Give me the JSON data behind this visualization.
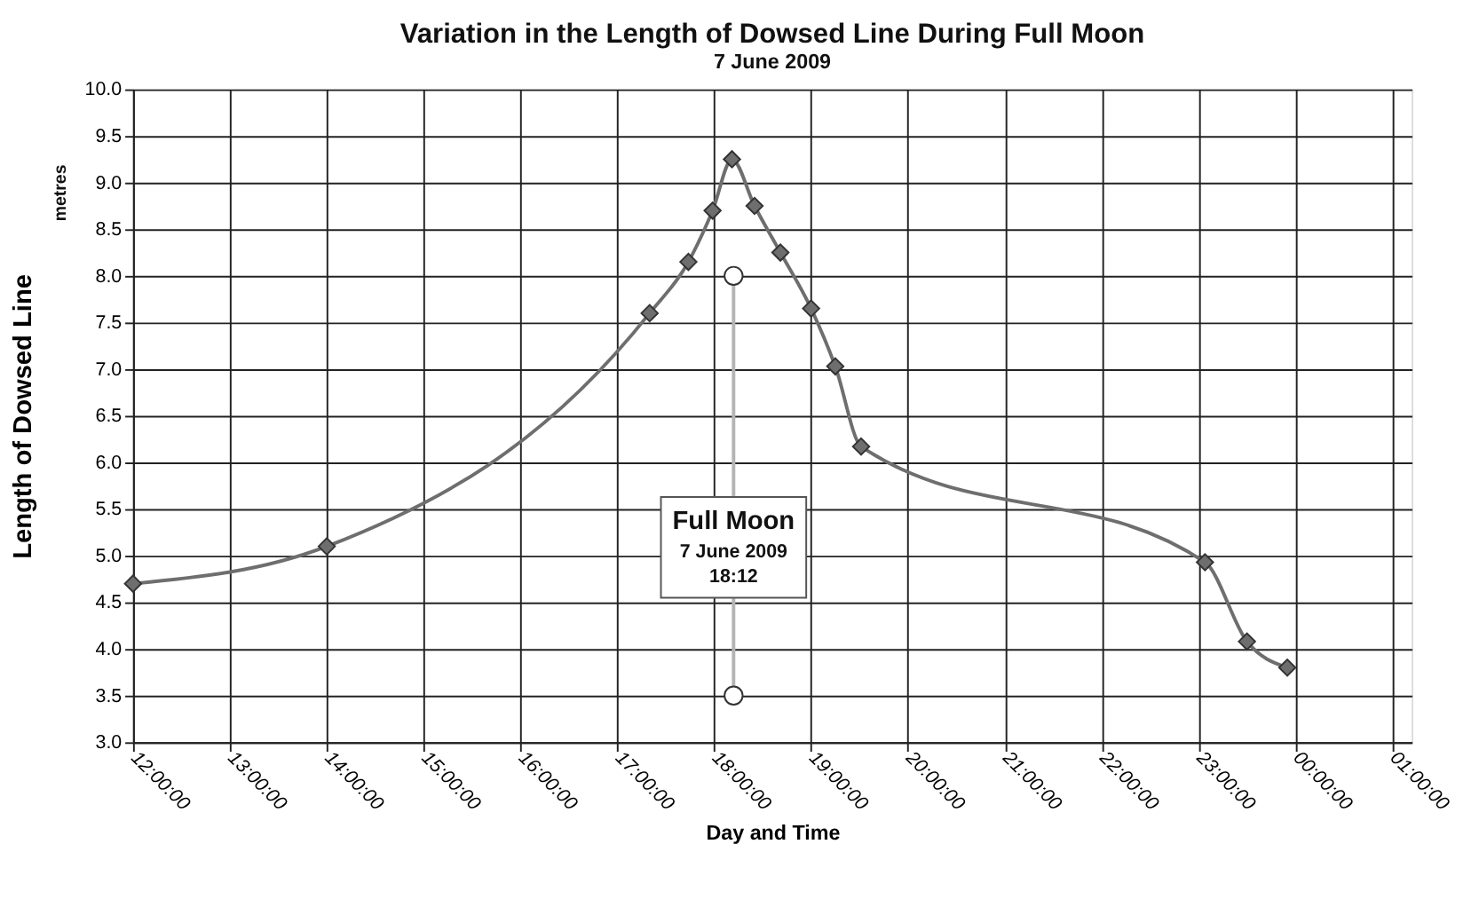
{
  "chart_data": {
    "type": "line",
    "title": "Variation in the Length of Dowsed Line During Full Moon",
    "subtitle": "7 June 2009",
    "xlabel": "Day and Time",
    "ylabel": "Length of Dowsed Line",
    "series": [
      {
        "color": "#6e6e6e",
        "marker": "diamond",
        "x": [
          "2009-06-07T12:00",
          "2009-06-07T14:00",
          "2009-06-07T17:20",
          "2009-06-07T17:44",
          "2009-06-07T17:59",
          "2009-06-07T18:11",
          "2009-06-07T18:25",
          "2009-06-07T18:41",
          "2009-06-07T19:00",
          "2009-06-07T19:15",
          "2009-06-07T19:31",
          "2009-06-07T23:04",
          "2009-06-07T23:30",
          "2009-06-07T23:55"
        ],
        "values": [
          4.7,
          5.1,
          7.6,
          8.15,
          8.7,
          9.25,
          8.75,
          8.25,
          7.65,
          7.03,
          6.17,
          4.93,
          4.08,
          3.8
        ]
      },
      {
        "color": "#b4b4b4",
        "marker": "circle",
        "x": [
          "2009-06-07T18:12",
          "2009-06-07T18:12"
        ],
        "values": [
          3.5,
          8.0
        ]
      }
    ],
    "annotations": [
      {
        "text": "Full Moon",
        "x": "2009-06-07T18:12",
        "y": 5.38
      },
      {
        "text": "7 June 2009",
        "x": "2009-06-07T18:12",
        "y": 5.04
      },
      {
        "text": "18:12",
        "x": "2009-06-07T18:12",
        "y": 4.77
      },
      "metres"
    ],
    "xlim": [
      "2009-06-07T12:00",
      "2009-06-08T01:12"
    ],
    "ylim": [
      3.0,
      10.0
    ],
    "xticks": [
      {
        "value": "2009-06-07T12:00",
        "label": "12:00:00"
      },
      {
        "value": "2009-06-07T13:00",
        "label": "13:00:00"
      },
      {
        "value": "2009-06-07T14:00",
        "label": "14:00:00"
      },
      {
        "value": "2009-06-07T15:00",
        "label": "15:00:00"
      },
      {
        "value": "2009-06-07T16:00",
        "label": "16:00:00"
      },
      {
        "value": "2009-06-07T17:00",
        "label": "17:00:00"
      },
      {
        "value": "2009-06-07T18:00",
        "label": "18:00:00"
      },
      {
        "value": "2009-06-07T19:00",
        "label": "19:00:00"
      },
      {
        "value": "2009-06-07T20:00",
        "label": "20:00:00"
      },
      {
        "value": "2009-06-07T21:00",
        "label": "21:00:00"
      },
      {
        "value": "2009-06-07T22:00",
        "label": "22:00:00"
      },
      {
        "value": "2009-06-07T23:00",
        "label": "23:00:00"
      },
      {
        "value": "2009-06-08T00:00",
        "label": "00:00:00"
      },
      {
        "value": "2009-06-08T01:00",
        "label": "01:00:00"
      }
    ],
    "yticks": [
      {
        "value": 3.0,
        "label": "3.0"
      },
      {
        "value": 3.5,
        "label": "3.5"
      },
      {
        "value": 4.0,
        "label": "4.0"
      },
      {
        "value": 4.5,
        "label": "4.5"
      },
      {
        "value": 5.0,
        "label": "5.0"
      },
      {
        "value": 5.5,
        "label": "5.5"
      },
      {
        "value": 6.0,
        "label": "6.0"
      },
      {
        "value": 6.5,
        "label": "6.5"
      },
      {
        "value": 7.0,
        "label": "7.0"
      },
      {
        "value": 7.5,
        "label": "7.5"
      },
      {
        "value": 8.0,
        "label": "8.0"
      },
      {
        "value": 8.5,
        "label": "8.5"
      },
      {
        "value": 9.0,
        "label": "9.0"
      },
      {
        "value": 9.5,
        "label": "9.5"
      },
      {
        "value": 10.0,
        "label": "10.0"
      }
    ],
    "grid": true
  }
}
